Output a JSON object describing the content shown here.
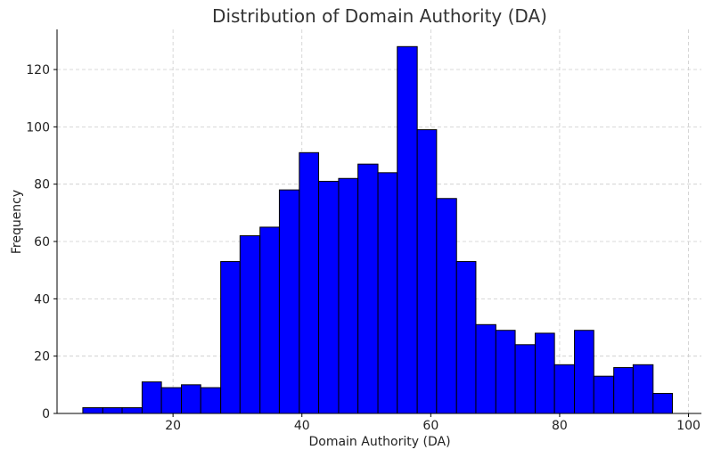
{
  "chart_data": {
    "type": "bar",
    "subtype": "histogram",
    "title": "Distribution of Domain Authority (DA)",
    "xlabel": "Domain Authority (DA)",
    "ylabel": "Frequency",
    "xlim": [
      2,
      102
    ],
    "ylim": [
      0,
      134
    ],
    "xticks": [
      20,
      40,
      60,
      80,
      100
    ],
    "yticks": [
      0,
      20,
      40,
      60,
      80,
      100,
      120
    ],
    "grid": true,
    "bar_color": "#0000ff",
    "edge_color": "#000000",
    "bins": [
      {
        "x0": 6.0,
        "x1": 9.1,
        "value": 2
      },
      {
        "x0": 9.1,
        "x1": 12.1,
        "value": 2
      },
      {
        "x0": 12.1,
        "x1": 15.2,
        "value": 2
      },
      {
        "x0": 15.2,
        "x1": 18.2,
        "value": 11
      },
      {
        "x0": 18.2,
        "x1": 21.3,
        "value": 9
      },
      {
        "x0": 21.3,
        "x1": 24.3,
        "value": 10
      },
      {
        "x0": 24.3,
        "x1": 27.4,
        "value": 9
      },
      {
        "x0": 27.4,
        "x1": 30.4,
        "value": 53
      },
      {
        "x0": 30.4,
        "x1": 33.5,
        "value": 62
      },
      {
        "x0": 33.5,
        "x1": 36.5,
        "value": 65
      },
      {
        "x0": 36.5,
        "x1": 39.6,
        "value": 78
      },
      {
        "x0": 39.6,
        "x1": 42.6,
        "value": 91
      },
      {
        "x0": 42.6,
        "x1": 45.7,
        "value": 81
      },
      {
        "x0": 45.7,
        "x1": 48.7,
        "value": 82
      },
      {
        "x0": 48.7,
        "x1": 51.8,
        "value": 87
      },
      {
        "x0": 51.8,
        "x1": 54.8,
        "value": 84
      },
      {
        "x0": 54.8,
        "x1": 57.9,
        "value": 128
      },
      {
        "x0": 57.9,
        "x1": 60.9,
        "value": 99
      },
      {
        "x0": 60.9,
        "x1": 64.0,
        "value": 75
      },
      {
        "x0": 64.0,
        "x1": 67.0,
        "value": 53
      },
      {
        "x0": 67.0,
        "x1": 70.1,
        "value": 31
      },
      {
        "x0": 70.1,
        "x1": 73.1,
        "value": 29
      },
      {
        "x0": 73.1,
        "x1": 76.2,
        "value": 24
      },
      {
        "x0": 76.2,
        "x1": 79.2,
        "value": 28
      },
      {
        "x0": 79.2,
        "x1": 82.3,
        "value": 17
      },
      {
        "x0": 82.3,
        "x1": 85.3,
        "value": 29
      },
      {
        "x0": 85.3,
        "x1": 88.4,
        "value": 13
      },
      {
        "x0": 88.4,
        "x1": 91.4,
        "value": 16
      },
      {
        "x0": 91.4,
        "x1": 94.5,
        "value": 17
      },
      {
        "x0": 94.5,
        "x1": 97.5,
        "value": 7
      }
    ]
  }
}
